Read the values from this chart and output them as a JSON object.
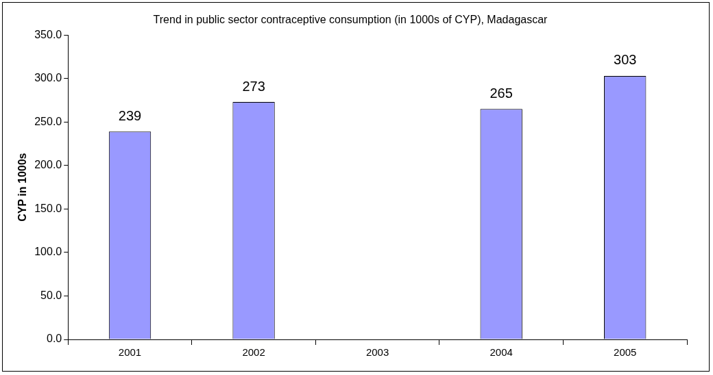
{
  "chart_data": {
    "type": "bar",
    "title": "Trend in public sector contraceptive consumption (in 1000s of CYP), Madagascar",
    "ylabel": "CYP in 1000s",
    "categories": [
      "2001",
      "2002",
      "2003",
      "2004",
      "2005"
    ],
    "values": [
      239,
      273,
      null,
      265,
      303
    ],
    "color": "#9999ff",
    "ylim": [
      0,
      350
    ],
    "yticks": [
      {
        "value": 0,
        "label": "0.0"
      },
      {
        "value": 50,
        "label": "50.0"
      },
      {
        "value": 100,
        "label": "100.0"
      },
      {
        "value": 150,
        "label": "150.0"
      },
      {
        "value": 200,
        "label": "200.0"
      },
      {
        "value": 250,
        "label": "250.0"
      },
      {
        "value": 300,
        "label": "300.0"
      },
      {
        "value": 350,
        "label": "350.0"
      }
    ],
    "data_labels": true
  }
}
